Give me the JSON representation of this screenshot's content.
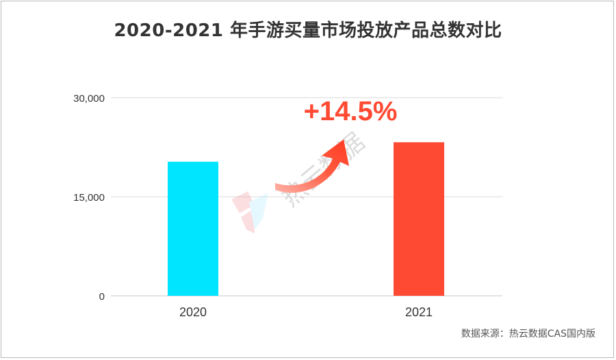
{
  "title": "2020-2021 年手游买量市场投放产品总数对比",
  "source": "数据来源：热云数据CAS国内版",
  "watermark": "热云数据",
  "chart_data": {
    "type": "bar",
    "categories": [
      "2020",
      "2021"
    ],
    "values": [
      20300,
      23250
    ],
    "ylim": [
      0,
      30000
    ],
    "yticks": [
      0,
      15000,
      30000
    ],
    "ytick_labels": [
      "0",
      "15,000",
      "30,000"
    ],
    "colors": [
      "#00e5ff",
      "#ff4a33"
    ],
    "grid": true,
    "legend": "none",
    "annotation": {
      "text": "+14.5%",
      "color": "#ff4a33"
    }
  }
}
